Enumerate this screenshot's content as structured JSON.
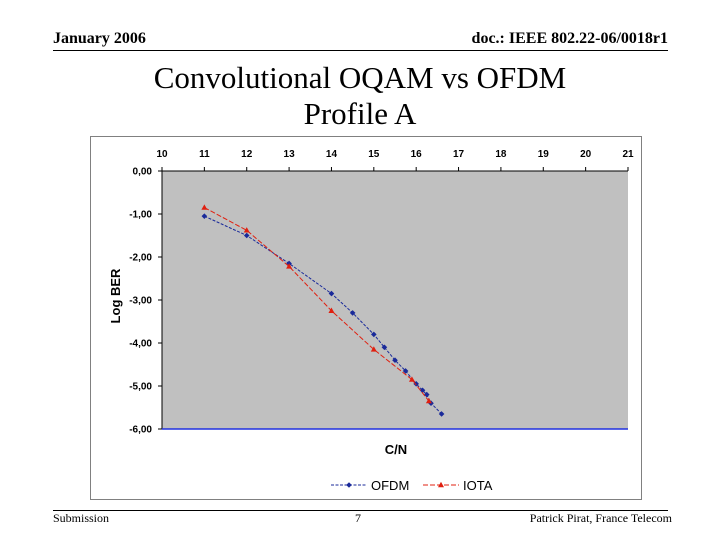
{
  "header": {
    "date": "January 2006",
    "doc_ref": "doc.: IEEE 802.22-06/0018r1"
  },
  "slide": {
    "title_line1": "Convolutional OQAM vs OFDM",
    "title_line2": "Profile A"
  },
  "footer": {
    "left": "Submission",
    "page_number": "7",
    "author": "Patrick Pirat, France Telecom"
  },
  "colors": {
    "plot_bg": "#c0c0c0",
    "ofdm": "#1a2a9a",
    "iota": "#e02010",
    "baseline": "#2030e0"
  },
  "chart_data": {
    "type": "line",
    "title": "",
    "xlabel": "C/N",
    "ylabel": "Log BER",
    "xlim": [
      10,
      21
    ],
    "ylim": [
      -6,
      0
    ],
    "x_ticks": [
      "10",
      "11",
      "12",
      "13",
      "14",
      "15",
      "16",
      "17",
      "18",
      "19",
      "20",
      "21"
    ],
    "y_ticks": [
      "0,00",
      "-1,00",
      "-2,00",
      "-3,00",
      "-4,00",
      "-5,00",
      "-6,00"
    ],
    "legend_position": "bottom",
    "series": [
      {
        "name": "OFDM",
        "marker": "diamond",
        "x": [
          11.0,
          12.0,
          13.0,
          14.0,
          14.5,
          15.0,
          15.25,
          15.5,
          15.75,
          16.0,
          16.15,
          16.25,
          16.35,
          16.6
        ],
        "y": [
          -1.05,
          -1.5,
          -2.15,
          -2.85,
          -3.3,
          -3.8,
          -4.1,
          -4.4,
          -4.65,
          -4.95,
          -5.1,
          -5.2,
          -5.4,
          -5.65
        ]
      },
      {
        "name": "IOTA",
        "marker": "triangle",
        "x": [
          11.0,
          12.0,
          13.0,
          14.0,
          15.0,
          15.9,
          16.3
        ],
        "y": [
          -0.85,
          -1.38,
          -2.22,
          -3.25,
          -4.15,
          -4.85,
          -5.35
        ]
      }
    ]
  }
}
